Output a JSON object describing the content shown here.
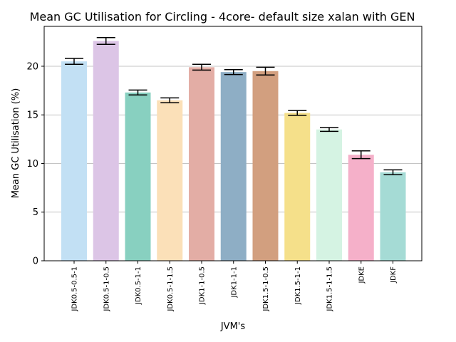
{
  "chart_data": {
    "type": "bar",
    "title": "Mean GC Utilisation for Circling - 4core- default size xalan with GEN",
    "xlabel": "JVM's",
    "ylabel": "Mean GC Utilisation (%)",
    "ylim": [
      0,
      24.1
    ],
    "yticks": [
      0,
      5,
      10,
      15,
      20
    ],
    "grid": "horizontal",
    "error_bars": true,
    "categories": [
      "JDK0.5-0.5-1",
      "JDK0.5-1-0.5",
      "JDK0.5-1-1",
      "JDK0.5-1-1.5",
      "JDK1-1-0.5",
      "JDK1-1-1",
      "JDK1.5-1-0.5",
      "JDK1.5-1-1",
      "JDK1.5-1-1.5",
      "JDKE",
      "JDKF"
    ],
    "values": [
      20.5,
      22.6,
      17.3,
      16.5,
      19.9,
      19.4,
      19.5,
      15.2,
      13.5,
      10.9,
      9.1
    ],
    "errors": [
      0.3,
      0.35,
      0.25,
      0.25,
      0.3,
      0.25,
      0.4,
      0.25,
      0.2,
      0.4,
      0.25
    ],
    "colors": [
      "#c2e0f4",
      "#dcc5e6",
      "#88d0c0",
      "#fbe0b8",
      "#e3ada5",
      "#8eaec5",
      "#d29f7f",
      "#f5e08a",
      "#d5f3e3",
      "#f5b0c9",
      "#a5dbd5"
    ]
  }
}
